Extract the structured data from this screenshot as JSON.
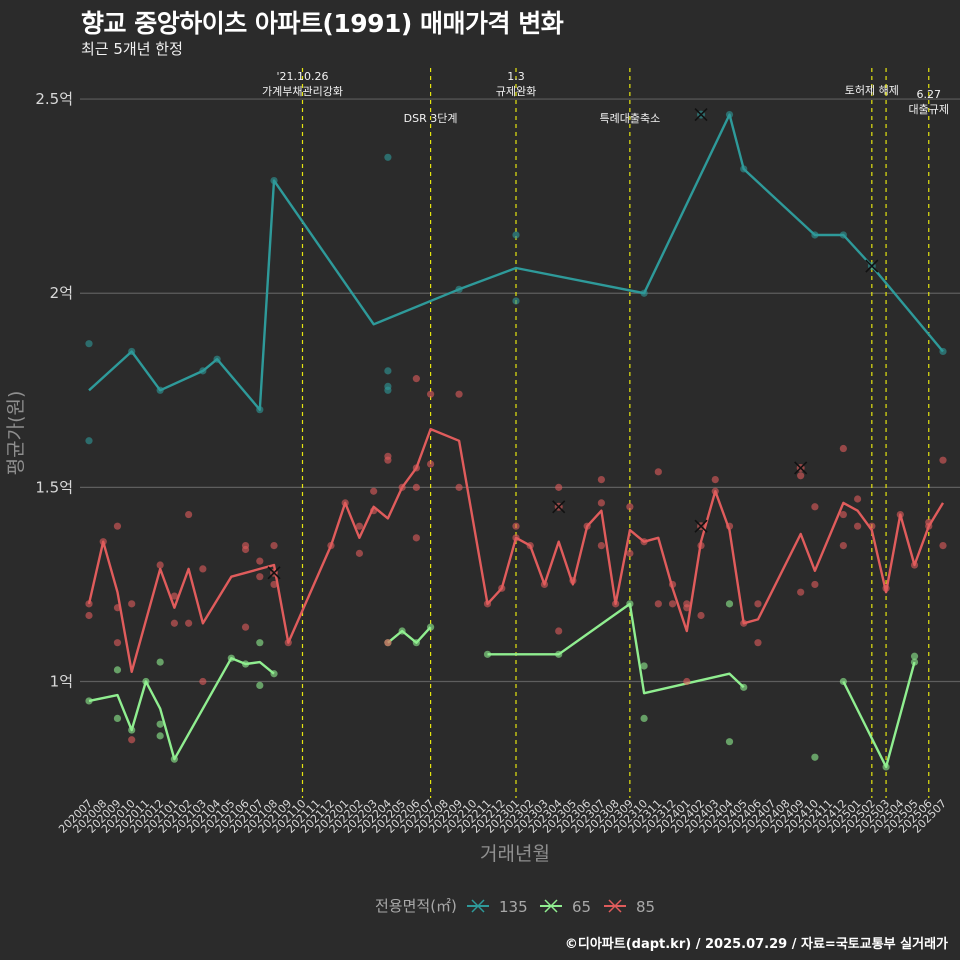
{
  "title": "향교 중앙하이츠 아파트(1991) 매매가격 변화",
  "subtitle": "최근 5개년 한정",
  "caption": "©디아파트(dapt.kr) / 2025.07.29 / 자료=국토교통부 실거래가",
  "chart_data": {
    "type": "line",
    "xlabel": "거래년월",
    "ylabel": "평균가(원)",
    "ylim": [
      0.7,
      2.58
    ],
    "y_ticks": [
      {
        "value": 1.0,
        "label": "1억"
      },
      {
        "value": 1.5,
        "label": "1.5억"
      },
      {
        "value": 2.0,
        "label": "2억"
      },
      {
        "value": 2.5,
        "label": "2.5억"
      }
    ],
    "categories": [
      "202007",
      "202008",
      "202009",
      "202010",
      "202011",
      "202012",
      "202101",
      "202102",
      "202103",
      "202104",
      "202105",
      "202106",
      "202107",
      "202108",
      "202109",
      "202110",
      "202111",
      "202112",
      "202201",
      "202202",
      "202203",
      "202204",
      "202205",
      "202206",
      "202207",
      "202208",
      "202209",
      "202210",
      "202211",
      "202212",
      "202301",
      "202302",
      "202303",
      "202304",
      "202305",
      "202306",
      "202307",
      "202308",
      "202309",
      "202310",
      "202311",
      "202312",
      "202401",
      "202402",
      "202403",
      "202404",
      "202405",
      "202406",
      "202407",
      "202408",
      "202409",
      "202410",
      "202411",
      "202412",
      "202501",
      "202502",
      "202503",
      "202504",
      "202505",
      "202506",
      "202507"
    ],
    "events": [
      {
        "x": "202110",
        "label": "'21.10.26\n가계부채관리강화",
        "row": 0
      },
      {
        "x": "202207",
        "label": "DSR 3단계",
        "row": 1
      },
      {
        "x": "202301",
        "label": "1.3\n규제완화",
        "row": 0
      },
      {
        "x": "202309",
        "label": "특례대출축소",
        "row": 1
      },
      {
        "x": "202502",
        "label": "토허제 해제",
        "row": 0
      },
      {
        "x": "202503",
        "label": "",
        "row": 0
      },
      {
        "x": "202506",
        "label": "6.27\n대출규제",
        "row": 2
      }
    ],
    "legend_title": "전용면적(㎡)",
    "legend_position": "bottom",
    "series": [
      {
        "name": "135",
        "color": "#2e9a9a",
        "line": [
          [
            "202007",
            1.75
          ],
          [
            "202010",
            1.85
          ],
          [
            "202012",
            1.75
          ],
          [
            "202103",
            1.8
          ],
          [
            "202104",
            1.83
          ],
          [
            "202107",
            1.7
          ],
          [
            "202108",
            2.29
          ],
          [
            "202203",
            1.92
          ],
          [
            "202209",
            2.01
          ],
          [
            "202301",
            2.065
          ],
          [
            "202310",
            2.0
          ],
          [
            "202404",
            2.46
          ],
          [
            "202405",
            2.32
          ],
          [
            "202410",
            2.15
          ],
          [
            "202412",
            2.15
          ],
          [
            "202502",
            2.07
          ],
          [
            "202507",
            1.85
          ]
        ],
        "points": [
          [
            "202007",
            1.87
          ],
          [
            "202007",
            1.62
          ],
          [
            "202010",
            1.85
          ],
          [
            "202012",
            1.75
          ],
          [
            "202103",
            1.8
          ],
          [
            "202104",
            1.83
          ],
          [
            "202107",
            1.7
          ],
          [
            "202108",
            2.29
          ],
          [
            "202204",
            2.35
          ],
          [
            "202204",
            1.8
          ],
          [
            "202204",
            1.76
          ],
          [
            "202204",
            1.75
          ],
          [
            "202209",
            2.01
          ],
          [
            "202301",
            2.15
          ],
          [
            "202301",
            1.98
          ],
          [
            "202310",
            2.0
          ],
          [
            "202404",
            2.46
          ],
          [
            "202405",
            2.32
          ],
          [
            "202410",
            2.15
          ],
          [
            "202412",
            2.15
          ],
          [
            "202507",
            1.85
          ]
        ],
        "cancelled": [
          [
            "202402",
            2.46
          ],
          [
            "202502",
            2.07
          ]
        ]
      },
      {
        "name": "65",
        "color": "#90ee90",
        "segments": [
          [
            [
              "202007",
              0.95
            ],
            [
              "202009",
              0.965
            ],
            [
              "202010",
              0.875
            ],
            [
              "202011",
              1.0
            ],
            [
              "202012",
              0.93
            ],
            [
              "202101",
              0.8
            ],
            [
              "202105",
              1.06
            ],
            [
              "202106",
              1.045
            ],
            [
              "202107",
              1.05
            ],
            [
              "202108",
              1.02
            ]
          ],
          [
            [
              "202204",
              1.1
            ],
            [
              "202205",
              1.13
            ],
            [
              "202206",
              1.1
            ],
            [
              "202207",
              1.14
            ]
          ],
          [
            [
              "202211",
              1.07
            ],
            [
              "202304",
              1.07
            ],
            [
              "202309",
              1.2
            ],
            [
              "202310",
              0.97
            ],
            [
              "202404",
              1.02
            ],
            [
              "202405",
              0.985
            ]
          ],
          [
            [
              "202412",
              1.0
            ],
            [
              "202503",
              0.78
            ],
            [
              "202505",
              1.05
            ]
          ]
        ],
        "points": [
          [
            "202007",
            0.95
          ],
          [
            "202009",
            0.905
          ],
          [
            "202009",
            1.03
          ],
          [
            "202010",
            0.875
          ],
          [
            "202011",
            1.0
          ],
          [
            "202012",
            0.89
          ],
          [
            "202012",
            0.86
          ],
          [
            "202012",
            1.05
          ],
          [
            "202101",
            0.8
          ],
          [
            "202105",
            1.06
          ],
          [
            "202106",
            1.045
          ],
          [
            "202107",
            1.1
          ],
          [
            "202107",
            0.99
          ],
          [
            "202108",
            1.02
          ],
          [
            "202204",
            1.1
          ],
          [
            "202205",
            1.13
          ],
          [
            "202206",
            1.1
          ],
          [
            "202207",
            1.14
          ],
          [
            "202211",
            1.07
          ],
          [
            "202304",
            1.07
          ],
          [
            "202309",
            1.2
          ],
          [
            "202310",
            1.04
          ],
          [
            "202310",
            0.905
          ],
          [
            "202404",
            1.2
          ],
          [
            "202404",
            0.845
          ],
          [
            "202405",
            0.985
          ],
          [
            "202410",
            0.805
          ],
          [
            "202412",
            1.0
          ],
          [
            "202503",
            0.78
          ],
          [
            "202505",
            1.05
          ],
          [
            "202505",
            1.065
          ]
        ],
        "cancelled": []
      },
      {
        "name": "85",
        "color": "#e05c5c",
        "line": [
          [
            "202007",
            1.2
          ],
          [
            "202008",
            1.36
          ],
          [
            "202009",
            1.23
          ],
          [
            "202010",
            1.025
          ],
          [
            "202012",
            1.29
          ],
          [
            "202101",
            1.19
          ],
          [
            "202102",
            1.29
          ],
          [
            "202103",
            1.15
          ],
          [
            "202105",
            1.27
          ],
          [
            "202106",
            1.28
          ],
          [
            "202107",
            1.29
          ],
          [
            "202108",
            1.3
          ],
          [
            "202109",
            1.1
          ],
          [
            "202112",
            1.35
          ],
          [
            "202201",
            1.46
          ],
          [
            "202202",
            1.37
          ],
          [
            "202203",
            1.45
          ],
          [
            "202204",
            1.42
          ],
          [
            "202205",
            1.5
          ],
          [
            "202206",
            1.55
          ],
          [
            "202207",
            1.65
          ],
          [
            "202209",
            1.62
          ],
          [
            "202211",
            1.2
          ],
          [
            "202212",
            1.24
          ],
          [
            "202301",
            1.37
          ],
          [
            "202302",
            1.35
          ],
          [
            "202303",
            1.25
          ],
          [
            "202304",
            1.36
          ],
          [
            "202305",
            1.25
          ],
          [
            "202306",
            1.4
          ],
          [
            "202307",
            1.44
          ],
          [
            "202308",
            1.2
          ],
          [
            "202309",
            1.39
          ],
          [
            "202310",
            1.36
          ],
          [
            "202311",
            1.37
          ],
          [
            "202312",
            1.24
          ],
          [
            "202401",
            1.13
          ],
          [
            "202402",
            1.36
          ],
          [
            "202403",
            1.49
          ],
          [
            "202404",
            1.39
          ],
          [
            "202405",
            1.15
          ],
          [
            "202406",
            1.16
          ],
          [
            "202409",
            1.38
          ],
          [
            "202410",
            1.285
          ],
          [
            "202412",
            1.46
          ],
          [
            "202501",
            1.44
          ],
          [
            "202502",
            1.39
          ],
          [
            "202503",
            1.23
          ],
          [
            "202504",
            1.43
          ],
          [
            "202505",
            1.3
          ],
          [
            "202506",
            1.4
          ],
          [
            "202507",
            1.46
          ]
        ],
        "points": [
          [
            "202007",
            1.2
          ],
          [
            "202007",
            1.17
          ],
          [
            "202008",
            1.36
          ],
          [
            "202009",
            1.4
          ],
          [
            "202009",
            1.19
          ],
          [
            "202009",
            1.1
          ],
          [
            "202010",
            1.2
          ],
          [
            "202010",
            0.85
          ],
          [
            "202012",
            1.3
          ],
          [
            "202101",
            1.22
          ],
          [
            "202101",
            1.15
          ],
          [
            "202102",
            1.43
          ],
          [
            "202102",
            1.15
          ],
          [
            "202103",
            1.29
          ],
          [
            "202103",
            1.0
          ],
          [
            "202106",
            1.35
          ],
          [
            "202106",
            1.34
          ],
          [
            "202106",
            1.14
          ],
          [
            "202107",
            1.31
          ],
          [
            "202107",
            1.27
          ],
          [
            "202108",
            1.35
          ],
          [
            "202108",
            1.25
          ],
          [
            "202109",
            1.1
          ],
          [
            "202112",
            1.35
          ],
          [
            "202201",
            1.46
          ],
          [
            "202202",
            1.4
          ],
          [
            "202202",
            1.33
          ],
          [
            "202203",
            1.49
          ],
          [
            "202203",
            1.44
          ],
          [
            "202204",
            1.58
          ],
          [
            "202204",
            1.57
          ],
          [
            "202204",
            1.1
          ],
          [
            "202205",
            1.5
          ],
          [
            "202206",
            1.78
          ],
          [
            "202206",
            1.55
          ],
          [
            "202206",
            1.5
          ],
          [
            "202206",
            1.37
          ],
          [
            "202207",
            1.74
          ],
          [
            "202207",
            1.56
          ],
          [
            "202209",
            1.74
          ],
          [
            "202209",
            1.5
          ],
          [
            "202211",
            1.2
          ],
          [
            "202212",
            1.24
          ],
          [
            "202301",
            1.4
          ],
          [
            "202301",
            1.37
          ],
          [
            "202302",
            1.35
          ],
          [
            "202303",
            1.25
          ],
          [
            "202304",
            1.5
          ],
          [
            "202304",
            1.13
          ],
          [
            "202305",
            1.26
          ],
          [
            "202306",
            1.4
          ],
          [
            "202307",
            1.52
          ],
          [
            "202307",
            1.46
          ],
          [
            "202307",
            1.35
          ],
          [
            "202308",
            1.2
          ],
          [
            "202309",
            1.45
          ],
          [
            "202309",
            1.33
          ],
          [
            "202310",
            1.36
          ],
          [
            "202311",
            1.54
          ],
          [
            "202311",
            1.2
          ],
          [
            "202312",
            1.25
          ],
          [
            "202312",
            1.2
          ],
          [
            "202401",
            1.2
          ],
          [
            "202401",
            1.19
          ],
          [
            "202401",
            1.0
          ],
          [
            "202402",
            1.17
          ],
          [
            "202402",
            1.35
          ],
          [
            "202403",
            1.52
          ],
          [
            "202403",
            1.49
          ],
          [
            "202404",
            1.4
          ],
          [
            "202405",
            1.15
          ],
          [
            "202406",
            1.2
          ],
          [
            "202406",
            1.1
          ],
          [
            "202409",
            1.53
          ],
          [
            "202409",
            1.23
          ],
          [
            "202410",
            1.45
          ],
          [
            "202410",
            1.25
          ],
          [
            "202412",
            1.6
          ],
          [
            "202412",
            1.43
          ],
          [
            "202412",
            1.35
          ],
          [
            "202501",
            1.47
          ],
          [
            "202501",
            1.4
          ],
          [
            "202502",
            1.4
          ],
          [
            "202503",
            1.24
          ],
          [
            "202504",
            1.43
          ],
          [
            "202505",
            1.3
          ],
          [
            "202506",
            1.41
          ],
          [
            "202506",
            1.4
          ],
          [
            "202507",
            1.57
          ],
          [
            "202507",
            1.35
          ]
        ],
        "cancelled": [
          [
            "202108",
            1.28
          ],
          [
            "202304",
            1.45
          ],
          [
            "202402",
            1.4
          ],
          [
            "202409",
            1.55
          ]
        ]
      }
    ]
  }
}
